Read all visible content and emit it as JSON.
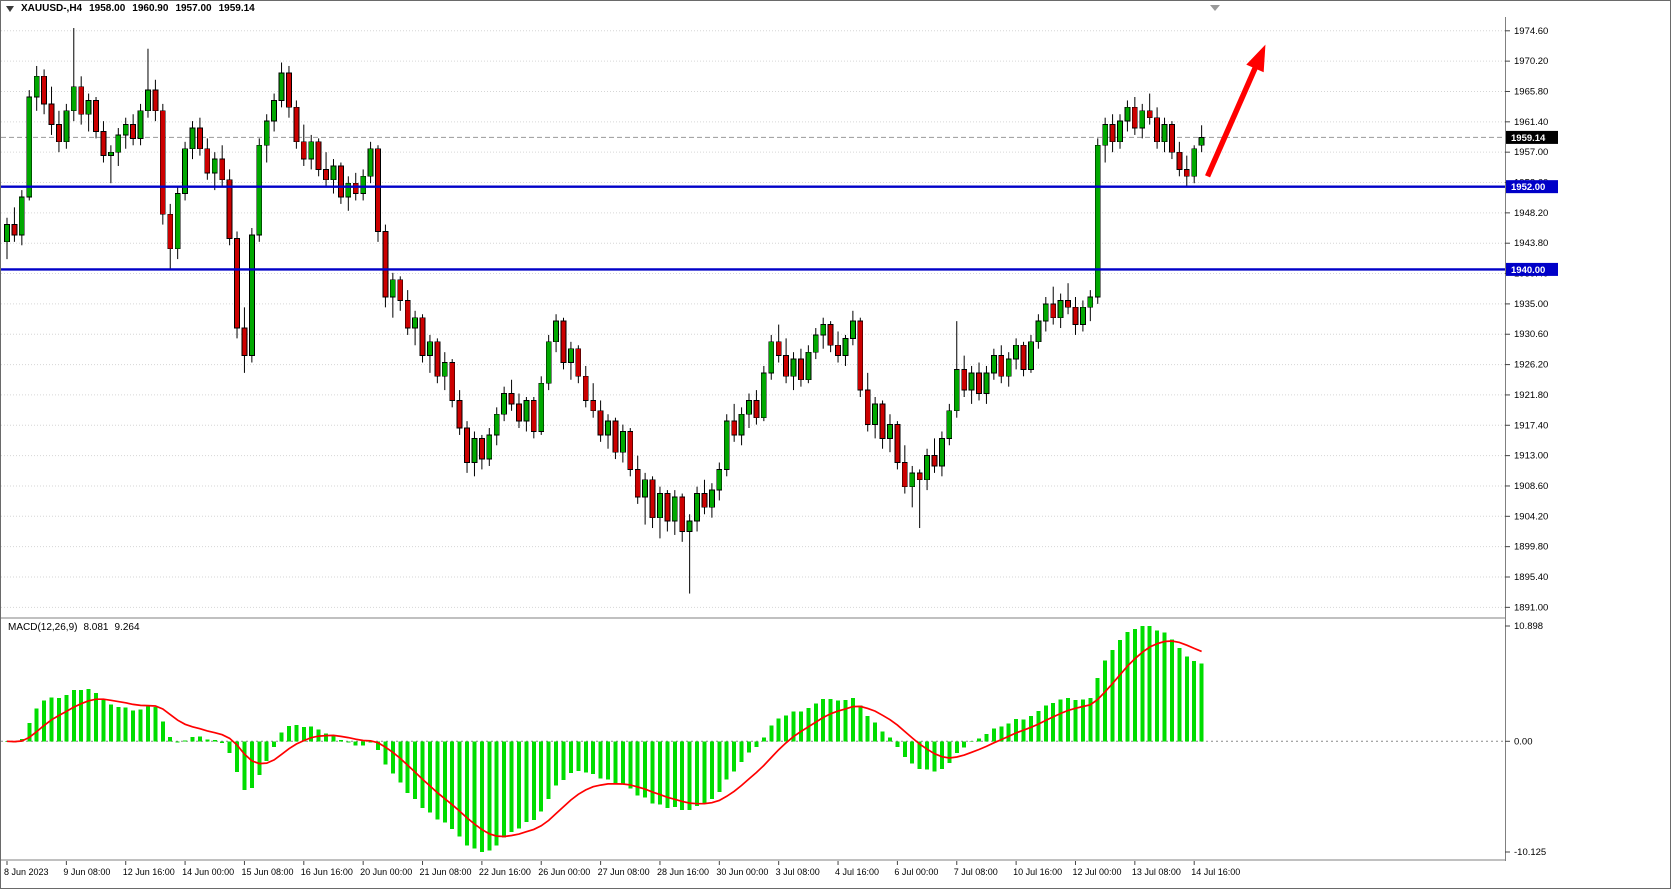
{
  "quote_bar": {
    "symbol": "XAUUSD-,H4",
    "open": "1958.00",
    "high": "1960.90",
    "low": "1957.00",
    "close": "1959.14"
  },
  "colors": {
    "bull": "#00a800",
    "bear": "#cc0000",
    "wick": "#000000",
    "grid": "#d6d6d6",
    "hline_blue": "#0000c8",
    "price_label_bg": "#000000",
    "macd_hist": "#00dd00",
    "macd_signal": "#ff0000",
    "arrow": "#ff0000",
    "separator": "#808080",
    "axis_text": "#000000"
  },
  "chart_data": [
    {
      "type": "candlestick",
      "title": "XAUUSD-,H4",
      "timeframe": "H4",
      "grid": "dotted-horizontal",
      "y_min": 1889.6,
      "y_max": 1976.6,
      "price_axis": {
        "tick_step": 4.4,
        "tick_labels": [
          "1974.60",
          "1970.20",
          "1965.80",
          "1961.40",
          "1957.00",
          "1952.60",
          "1948.20",
          "1943.80",
          "1939.40",
          "1935.00",
          "1930.60",
          "1926.20",
          "1921.80",
          "1917.40",
          "1913.00",
          "1908.60",
          "1904.20",
          "1899.80",
          "1895.40",
          "1891.00"
        ]
      },
      "x_label_every": 8,
      "x_tick_labels": [
        "8 Jun 2023",
        "9 Jun 08:00",
        "12 Jun 16:00",
        "14 Jun 00:00",
        "15 Jun 08:00",
        "16 Jun 16:00",
        "20 Jun 00:00",
        "21 Jun 08:00",
        "22 Jun 16:00",
        "26 Jun 00:00",
        "27 Jun 08:00",
        "28 Jun 16:00",
        "30 Jun 00:00",
        "3 Jul 08:00",
        "4 Jul 16:00",
        "6 Jul 00:00",
        "7 Jul 08:00",
        "10 Jul 16:00",
        "12 Jul 00:00",
        "13 Jul 08:00",
        "14 Jul 16:00"
      ],
      "horizontal_lines": [
        {
          "price": 1952.0,
          "label": "1952.00"
        },
        {
          "price": 1940.0,
          "label": "1940.00"
        }
      ],
      "current_price": {
        "value": 1959.14,
        "label": "1959.14"
      },
      "trend_arrow": {
        "from_candle": 161.8,
        "from_price": 1953.5,
        "to_candle": 169.6,
        "to_price": 1972.6
      },
      "candles": [
        [
          1944.0,
          1947.5,
          1941.5,
          1946.5
        ],
        [
          1946.5,
          1949.0,
          1944.0,
          1945.0
        ],
        [
          1945.0,
          1951.5,
          1943.5,
          1950.5
        ],
        [
          1950.5,
          1966.0,
          1950.0,
          1965.0
        ],
        [
          1965.0,
          1969.5,
          1963.0,
          1968.0
        ],
        [
          1968.0,
          1969.0,
          1962.5,
          1964.0
        ],
        [
          1964.0,
          1966.5,
          1959.5,
          1961.0
        ],
        [
          1961.0,
          1963.0,
          1957.0,
          1958.5
        ],
        [
          1958.5,
          1964.0,
          1957.5,
          1963.0
        ],
        [
          1963.0,
          1975.0,
          1961.5,
          1966.5
        ],
        [
          1966.5,
          1968.0,
          1961.0,
          1962.5
        ],
        [
          1962.5,
          1965.5,
          1960.0,
          1964.5
        ],
        [
          1964.5,
          1965.0,
          1959.0,
          1960.0
        ],
        [
          1960.0,
          1961.5,
          1955.5,
          1956.5
        ],
        [
          1956.5,
          1958.0,
          1952.5,
          1957.0
        ],
        [
          1957.0,
          1960.5,
          1955.0,
          1959.5
        ],
        [
          1959.5,
          1962.0,
          1957.5,
          1961.0
        ],
        [
          1961.0,
          1962.5,
          1958.0,
          1959.0
        ],
        [
          1959.0,
          1964.0,
          1958.0,
          1963.0
        ],
        [
          1963.0,
          1972.0,
          1962.0,
          1966.0
        ],
        [
          1966.0,
          1967.5,
          1961.5,
          1963.0
        ],
        [
          1963.0,
          1964.0,
          1946.5,
          1948.0
        ],
        [
          1948.0,
          1949.5,
          1940.0,
          1943.0
        ],
        [
          1943.0,
          1952.0,
          1941.5,
          1951.0
        ],
        [
          1951.0,
          1958.5,
          1950.0,
          1957.5
        ],
        [
          1957.5,
          1961.5,
          1956.0,
          1960.5
        ],
        [
          1960.5,
          1962.0,
          1956.5,
          1957.5
        ],
        [
          1957.5,
          1959.0,
          1953.0,
          1954.0
        ],
        [
          1954.0,
          1957.0,
          1951.5,
          1956.0
        ],
        [
          1956.0,
          1958.0,
          1952.0,
          1953.0
        ],
        [
          1953.0,
          1954.5,
          1943.5,
          1944.5
        ],
        [
          1944.5,
          1945.5,
          1930.0,
          1931.5
        ],
        [
          1931.5,
          1934.5,
          1925.0,
          1927.5
        ],
        [
          1927.5,
          1946.0,
          1926.5,
          1945.0
        ],
        [
          1945.0,
          1959.0,
          1944.0,
          1958.0
        ],
        [
          1958.0,
          1962.5,
          1955.5,
          1961.5
        ],
        [
          1961.5,
          1965.5,
          1960.0,
          1964.5
        ],
        [
          1964.5,
          1970.0,
          1963.5,
          1968.5
        ],
        [
          1968.5,
          1969.5,
          1962.0,
          1963.5
        ],
        [
          1963.5,
          1964.5,
          1957.5,
          1958.5
        ],
        [
          1958.5,
          1961.0,
          1955.0,
          1956.0
        ],
        [
          1956.0,
          1959.5,
          1954.5,
          1958.5
        ],
        [
          1958.5,
          1959.0,
          1953.5,
          1954.5
        ],
        [
          1954.5,
          1957.0,
          1952.0,
          1953.0
        ],
        [
          1953.0,
          1956.0,
          1951.0,
          1955.0
        ],
        [
          1955.0,
          1955.5,
          1949.5,
          1950.5
        ],
        [
          1950.5,
          1953.5,
          1948.5,
          1952.5
        ],
        [
          1952.5,
          1954.0,
          1950.0,
          1951.0
        ],
        [
          1951.0,
          1954.5,
          1950.0,
          1953.5
        ],
        [
          1953.5,
          1958.5,
          1952.5,
          1957.5
        ],
        [
          1957.5,
          1958.0,
          1944.0,
          1945.5
        ],
        [
          1945.5,
          1946.5,
          1934.5,
          1936.0
        ],
        [
          1936.0,
          1939.5,
          1933.0,
          1938.5
        ],
        [
          1938.5,
          1939.0,
          1934.0,
          1935.5
        ],
        [
          1935.5,
          1937.0,
          1930.5,
          1931.5
        ],
        [
          1931.5,
          1934.0,
          1929.0,
          1933.0
        ],
        [
          1933.0,
          1933.5,
          1926.5,
          1927.5
        ],
        [
          1927.5,
          1930.5,
          1925.0,
          1929.5
        ],
        [
          1929.5,
          1930.0,
          1923.5,
          1924.5
        ],
        [
          1924.5,
          1928.0,
          1922.5,
          1926.5
        ],
        [
          1926.5,
          1927.0,
          1920.0,
          1921.0
        ],
        [
          1921.0,
          1922.5,
          1916.0,
          1917.0
        ],
        [
          1917.0,
          1918.0,
          1910.5,
          1912.0
        ],
        [
          1912.0,
          1916.5,
          1910.0,
          1915.5
        ],
        [
          1915.5,
          1916.0,
          1911.0,
          1912.5
        ],
        [
          1912.5,
          1917.0,
          1911.5,
          1916.0
        ],
        [
          1916.0,
          1920.0,
          1914.5,
          1919.0
        ],
        [
          1919.0,
          1923.0,
          1918.0,
          1922.0
        ],
        [
          1922.0,
          1924.0,
          1919.5,
          1920.5
        ],
        [
          1920.5,
          1922.0,
          1917.0,
          1918.0
        ],
        [
          1918.0,
          1921.5,
          1916.5,
          1921.0
        ],
        [
          1921.0,
          1921.5,
          1915.5,
          1916.5
        ],
        [
          1916.5,
          1924.5,
          1916.0,
          1923.5
        ],
        [
          1923.5,
          1930.5,
          1922.5,
          1929.5
        ],
        [
          1929.5,
          1933.5,
          1928.0,
          1932.5
        ],
        [
          1932.5,
          1933.0,
          1925.5,
          1926.5
        ],
        [
          1926.5,
          1929.5,
          1924.0,
          1928.5
        ],
        [
          1928.5,
          1929.0,
          1923.5,
          1924.5
        ],
        [
          1924.5,
          1926.0,
          1920.0,
          1921.0
        ],
        [
          1921.0,
          1923.5,
          1918.5,
          1919.5
        ],
        [
          1919.5,
          1921.0,
          1915.0,
          1916.0
        ],
        [
          1916.0,
          1919.0,
          1914.0,
          1918.0
        ],
        [
          1918.0,
          1918.5,
          1912.5,
          1913.5
        ],
        [
          1913.5,
          1917.5,
          1912.0,
          1916.5
        ],
        [
          1916.5,
          1917.0,
          1910.0,
          1911.0
        ],
        [
          1911.0,
          1913.0,
          1906.0,
          1907.0
        ],
        [
          1907.0,
          1910.5,
          1903.0,
          1909.5
        ],
        [
          1909.5,
          1910.0,
          1902.5,
          1904.0
        ],
        [
          1904.0,
          1908.5,
          1901.0,
          1907.5
        ],
        [
          1907.5,
          1908.0,
          1902.0,
          1903.5
        ],
        [
          1903.5,
          1908.0,
          1901.5,
          1907.0
        ],
        [
          1907.0,
          1907.5,
          1900.5,
          1902.0
        ],
        [
          1902.0,
          1904.5,
          1893.0,
          1903.5
        ],
        [
          1903.5,
          1908.5,
          1902.0,
          1907.5
        ],
        [
          1907.5,
          1909.5,
          1904.5,
          1905.5
        ],
        [
          1905.5,
          1909.0,
          1904.0,
          1908.0
        ],
        [
          1908.0,
          1912.0,
          1906.5,
          1911.0
        ],
        [
          1911.0,
          1919.0,
          1910.0,
          1918.0
        ],
        [
          1918.0,
          1920.5,
          1915.0,
          1916.0
        ],
        [
          1916.0,
          1920.0,
          1914.5,
          1919.0
        ],
        [
          1919.0,
          1922.0,
          1917.0,
          1921.0
        ],
        [
          1921.0,
          1922.5,
          1917.5,
          1918.5
        ],
        [
          1918.5,
          1926.0,
          1918.0,
          1925.0
        ],
        [
          1925.0,
          1930.5,
          1924.0,
          1929.5
        ],
        [
          1929.5,
          1932.0,
          1926.5,
          1927.5
        ],
        [
          1927.5,
          1930.0,
          1923.5,
          1924.5
        ],
        [
          1924.5,
          1928.0,
          1922.5,
          1927.0
        ],
        [
          1927.0,
          1928.5,
          1923.0,
          1924.0
        ],
        [
          1924.0,
          1929.0,
          1923.5,
          1928.0
        ],
        [
          1928.0,
          1931.5,
          1927.0,
          1930.5
        ],
        [
          1930.5,
          1933.0,
          1928.5,
          1932.0
        ],
        [
          1932.0,
          1932.5,
          1928.0,
          1929.0
        ],
        [
          1929.0,
          1931.0,
          1926.5,
          1927.5
        ],
        [
          1927.5,
          1930.5,
          1926.0,
          1930.0
        ],
        [
          1930.0,
          1934.0,
          1929.0,
          1932.5
        ],
        [
          1932.5,
          1933.0,
          1921.5,
          1922.5
        ],
        [
          1922.5,
          1925.0,
          1916.5,
          1917.5
        ],
        [
          1917.5,
          1921.5,
          1915.5,
          1920.5
        ],
        [
          1920.5,
          1921.0,
          1914.0,
          1915.5
        ],
        [
          1915.5,
          1919.0,
          1913.5,
          1917.5
        ],
        [
          1917.5,
          1918.0,
          1911.0,
          1912.0
        ],
        [
          1912.0,
          1914.5,
          1907.5,
          1908.5
        ],
        [
          1908.5,
          1911.5,
          1905.5,
          1910.5
        ],
        [
          1910.5,
          1911.0,
          1902.5,
          1909.5
        ],
        [
          1909.5,
          1914.0,
          1908.0,
          1913.0
        ],
        [
          1913.0,
          1915.5,
          1910.5,
          1911.5
        ],
        [
          1911.5,
          1916.5,
          1910.0,
          1915.5
        ],
        [
          1915.5,
          1920.5,
          1914.5,
          1919.5
        ],
        [
          1919.5,
          1932.5,
          1918.5,
          1925.5
        ],
        [
          1925.5,
          1927.5,
          1921.5,
          1922.5
        ],
        [
          1922.5,
          1926.0,
          1920.5,
          1925.0
        ],
        [
          1925.0,
          1926.5,
          1921.0,
          1922.0
        ],
        [
          1922.0,
          1926.0,
          1920.5,
          1925.0
        ],
        [
          1925.0,
          1928.5,
          1924.0,
          1927.5
        ],
        [
          1927.5,
          1929.0,
          1923.5,
          1924.5
        ],
        [
          1924.5,
          1928.0,
          1923.0,
          1927.0
        ],
        [
          1927.0,
          1930.0,
          1925.5,
          1929.0
        ],
        [
          1929.0,
          1929.5,
          1924.5,
          1925.5
        ],
        [
          1925.5,
          1930.5,
          1925.0,
          1929.5
        ],
        [
          1929.5,
          1933.5,
          1928.5,
          1932.5
        ],
        [
          1932.5,
          1936.0,
          1931.0,
          1935.0
        ],
        [
          1935.0,
          1937.5,
          1932.0,
          1933.0
        ],
        [
          1933.0,
          1936.5,
          1931.5,
          1935.5
        ],
        [
          1935.5,
          1938.0,
          1933.5,
          1934.5
        ],
        [
          1934.5,
          1936.0,
          1930.5,
          1932.0
        ],
        [
          1932.0,
          1935.5,
          1931.0,
          1934.5
        ],
        [
          1934.5,
          1937.0,
          1932.5,
          1936.0
        ],
        [
          1936.0,
          1959.0,
          1935.0,
          1958.0
        ],
        [
          1958.0,
          1962.0,
          1955.5,
          1961.0
        ],
        [
          1961.0,
          1962.5,
          1957.0,
          1958.5
        ],
        [
          1958.5,
          1962.5,
          1957.5,
          1961.5
        ],
        [
          1961.5,
          1964.5,
          1960.0,
          1963.5
        ],
        [
          1963.5,
          1965.0,
          1959.5,
          1960.5
        ],
        [
          1960.5,
          1964.0,
          1959.0,
          1963.0
        ],
        [
          1963.0,
          1965.5,
          1961.0,
          1962.0
        ],
        [
          1962.0,
          1963.5,
          1957.5,
          1958.5
        ],
        [
          1958.5,
          1962.0,
          1957.0,
          1961.0
        ],
        [
          1961.0,
          1961.5,
          1956.0,
          1957.0
        ],
        [
          1957.0,
          1958.5,
          1953.5,
          1954.5
        ],
        [
          1954.5,
          1956.5,
          1952.0,
          1953.5
        ],
        [
          1953.5,
          1958.0,
          1952.5,
          1957.5
        ],
        [
          1958.0,
          1960.9,
          1957.0,
          1959.14
        ]
      ]
    },
    {
      "type": "macd",
      "label": "MACD(12,26,9)",
      "macd_value": "8.081",
      "signal_value": "9.264",
      "params": {
        "fast": 12,
        "slow": 26,
        "signal": 9
      },
      "y_tick_labels": [
        "10.898",
        "0.00",
        "-10.125"
      ]
    }
  ]
}
